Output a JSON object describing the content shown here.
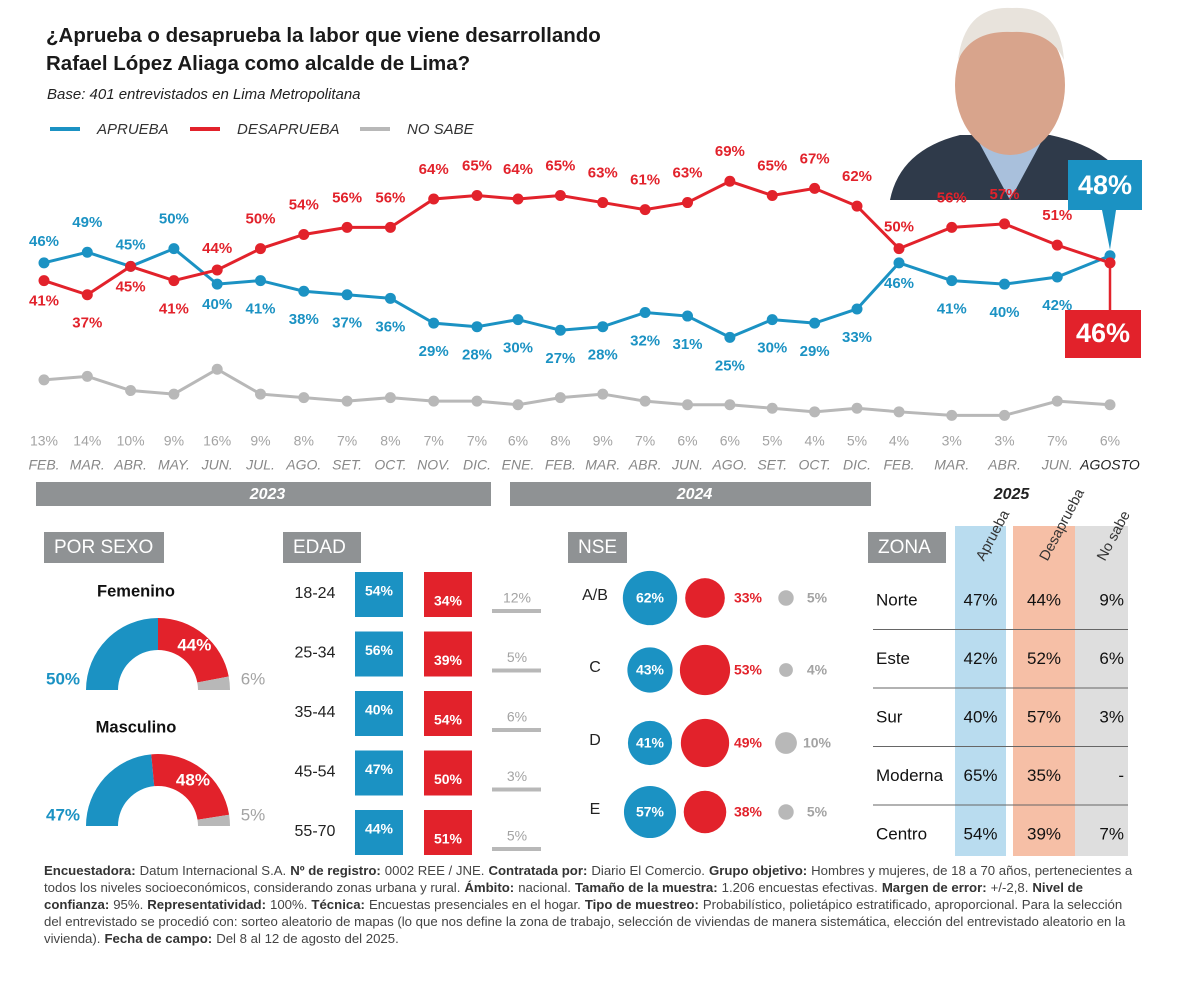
{
  "chart_data": [
    {
      "type": "line",
      "title": "¿Aprueba o desaprueba la labor que viene desarrollando Rafael López Aliaga como alcalde de Lima?",
      "subtitle": "Base: 401 entrevistados en Lima Metropolitana",
      "groups": [
        {
          "label": "2023",
          "categories": [
            "FEB.",
            "MAR.",
            "ABR.",
            "MAY.",
            "JUN.",
            "JUL.",
            "AGO.",
            "SET.",
            "OCT.",
            "NOV.",
            "DIC."
          ]
        },
        {
          "label": "2024",
          "categories": [
            "ENE.",
            "FEB.",
            "MAR.",
            "ABR.",
            "JUN.",
            "AGO.",
            "SET.",
            "OCT.",
            "DIC."
          ]
        },
        {
          "label": "2025",
          "categories": [
            "FEB.",
            "MAR.",
            "ABR.",
            "JUN.",
            "AGOSTO"
          ]
        }
      ],
      "ylim": [
        0,
        75
      ],
      "series": [
        {
          "name": "APRUEBA",
          "color": "#1b92c3",
          "values": [
            46,
            49,
            45,
            50,
            40,
            41,
            38,
            37,
            36,
            29,
            28,
            30,
            27,
            28,
            32,
            31,
            25,
            30,
            29,
            33,
            46,
            41,
            40,
            42,
            48
          ],
          "value_labels": [
            "46%",
            "49%",
            "45%",
            "50%",
            "40%",
            "41%",
            "38%",
            "37%",
            "36%",
            "29%",
            "28%",
            "30%",
            "27%",
            "28%",
            "32%",
            "31%",
            "25%",
            "30%",
            "29%",
            "33%",
            "46%",
            "41%",
            "40%",
            "42%",
            "48%"
          ]
        },
        {
          "name": "DESAPRUEBA",
          "color": "#e2222b",
          "values": [
            41,
            37,
            45,
            41,
            44,
            50,
            54,
            56,
            56,
            64,
            65,
            64,
            65,
            63,
            61,
            63,
            69,
            65,
            67,
            62,
            50,
            56,
            57,
            51,
            46
          ],
          "value_labels": [
            "41%",
            "37%",
            "45%",
            "41%",
            "44%",
            "50%",
            "54%",
            "56%",
            "56%",
            "64%",
            "65%",
            "64%",
            "65%",
            "63%",
            "61%",
            "63%",
            "69%",
            "65%",
            "67%",
            "62%",
            "50%",
            "56%",
            "57%",
            "51%",
            "46%"
          ]
        },
        {
          "name": "NO SABE",
          "color": "#b8b8b8",
          "values": [
            13,
            14,
            10,
            9,
            16,
            9,
            8,
            7,
            8,
            7,
            7,
            6,
            8,
            9,
            7,
            6,
            6,
            5,
            4,
            5,
            4,
            3,
            3,
            7,
            6
          ],
          "value_labels": [
            "13%",
            "14%",
            "10%",
            "9%",
            "16%",
            "9%",
            "8%",
            "7%",
            "8%",
            "7%",
            "7%",
            "6%",
            "8%",
            "9%",
            "7%",
            "6%",
            "6%",
            "5%",
            "4%",
            "5%",
            "4%",
            "3%",
            "3%",
            "7%",
            "6%"
          ]
        }
      ]
    },
    {
      "type": "half_donut",
      "title": "POR SEXO",
      "colors": [
        "#1b92c3",
        "#e2222b",
        "#b8b8b8"
      ],
      "groups": [
        {
          "name": "Femenino",
          "values": [
            50,
            44,
            6
          ],
          "value_labels": [
            "50%",
            "44%",
            "6%"
          ]
        },
        {
          "name": "Masculino",
          "values": [
            47,
            48,
            5
          ],
          "value_labels": [
            "47%",
            "48%",
            "5%"
          ]
        }
      ]
    },
    {
      "type": "boxes",
      "title": "EDAD",
      "categories": [
        "18-24",
        "25-34",
        "35-44",
        "45-54",
        "55-70"
      ],
      "series": [
        {
          "color": "#1b92c3",
          "values": [
            54,
            56,
            40,
            47,
            44
          ],
          "value_labels": [
            "54%",
            "56%",
            "40%",
            "47%",
            "44%"
          ]
        },
        {
          "color": "#e2222b",
          "values": [
            34,
            39,
            54,
            50,
            51
          ],
          "value_labels": [
            "34%",
            "39%",
            "54%",
            "50%",
            "51%"
          ]
        },
        {
          "color": "#b8b8b8",
          "values": [
            12,
            5,
            6,
            3,
            5
          ],
          "value_labels": [
            "12%",
            "5%",
            "6%",
            "3%",
            "5%"
          ]
        }
      ]
    },
    {
      "type": "bubble",
      "title": "NSE",
      "categories": [
        "A/B",
        "C",
        "D",
        "E"
      ],
      "series": [
        {
          "color": "#1b92c3",
          "values": [
            62,
            43,
            41,
            57
          ],
          "value_labels": [
            "62%",
            "43%",
            "41%",
            "57%"
          ]
        },
        {
          "color": "#e2222b",
          "values": [
            33,
            53,
            49,
            38
          ],
          "value_labels": [
            "33%",
            "53%",
            "49%",
            "38%"
          ]
        },
        {
          "color": "#b8b8b8",
          "values": [
            5,
            4,
            10,
            5
          ],
          "value_labels": [
            "5%",
            "4%",
            "10%",
            "5%"
          ]
        }
      ]
    }
  ],
  "table": {
    "title": "ZONA",
    "columns": [
      "Aprueba",
      "Desaprueba",
      "No sabe"
    ],
    "rows": [
      {
        "name": "Norte",
        "cells": [
          "47%",
          "44%",
          "9%"
        ]
      },
      {
        "name": "Este",
        "cells": [
          "42%",
          "52%",
          "6%"
        ]
      },
      {
        "name": "Sur",
        "cells": [
          "40%",
          "57%",
          "3%"
        ]
      },
      {
        "name": "Moderna",
        "cells": [
          "65%",
          "35%",
          "-"
        ]
      },
      {
        "name": "Centro",
        "cells": [
          "54%",
          "39%",
          "7%"
        ]
      }
    ]
  },
  "footer": [
    {
      "label": "Encuestadora:",
      "text": "Datum Internacional S.A."
    },
    {
      "label": "Nº de registro:",
      "text": "0002 REE / JNE."
    },
    {
      "label": "Contratada por:",
      "text": "Diario El Comercio."
    },
    {
      "label": "Grupo objetivo:",
      "text": "Hombres y mujeres, de 18 a 70 años, pertenecientes a todos los niveles socioeconómicos, considerando zonas urbana y rural."
    },
    {
      "label": "Ámbito:",
      "text": "nacional."
    },
    {
      "label": "Tamaño de la muestra:",
      "text": "1.206 encuestas efectivas."
    },
    {
      "label": "Margen de error:",
      "text": "+/-2,8."
    },
    {
      "label": "Nivel de confianza:",
      "text": "95%."
    },
    {
      "label": "Representatividad:",
      "text": "100%."
    },
    {
      "label": "Técnica:",
      "text": "Encuestas presenciales en el hogar."
    },
    {
      "label": "Tipo de muestreo:",
      "text": "Probabilístico, polietápico estratificado, aproporcional. Para la selección del entrevistado se procedió con: sorteo aleatorio de mapas (lo que nos define la zona de trabajo, selección de viviendas de manera sistemática, elección del entrevistado aleatorio en la vivienda)."
    },
    {
      "label": "Fecha de campo:",
      "text": "Del 8 al 12 de agosto del 2025."
    }
  ]
}
